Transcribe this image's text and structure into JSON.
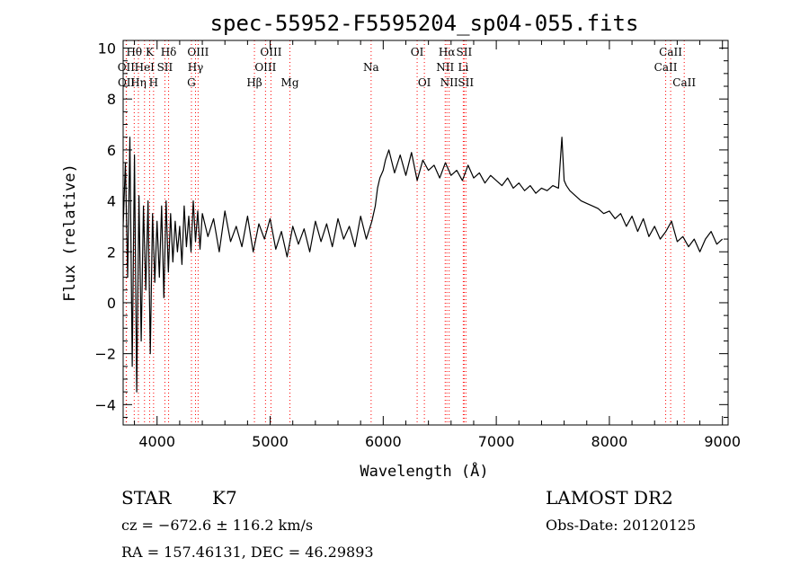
{
  "chart_data": {
    "type": "line",
    "title": "spec-55952-F5595204_sp04-055.fits",
    "xlabel": "Wavelength (Å)",
    "ylabel": "Flux (relative)",
    "xlim": [
      3700,
      9050
    ],
    "ylim": [
      -4.8,
      10.3
    ],
    "xticks": [
      4000,
      5000,
      6000,
      7000,
      8000,
      9000
    ],
    "yticks": [
      -4,
      -2,
      0,
      2,
      4,
      6,
      8,
      10
    ],
    "ytick_labels": [
      "−4",
      "−2",
      "0",
      "2",
      "4",
      "6",
      "8",
      "10"
    ],
    "grid": false,
    "line_color": "#000000",
    "marker_color": "#ff0000",
    "series": [
      {
        "x": [
          3700,
          3720,
          3740,
          3760,
          3780,
          3800,
          3820,
          3840,
          3860,
          3880,
          3900,
          3920,
          3940,
          3960,
          3980,
          4000,
          4020,
          4040,
          4060,
          4080,
          4100,
          4120,
          4140,
          4160,
          4180,
          4200,
          4220,
          4240,
          4260,
          4280,
          4300,
          4320,
          4340,
          4360,
          4380,
          4400,
          4450,
          4500,
          4550,
          4600,
          4650,
          4700,
          4750,
          4800,
          4850,
          4900,
          4950,
          5000,
          5050,
          5100,
          5150,
          5200,
          5250,
          5300,
          5350,
          5400,
          5450,
          5500,
          5550,
          5600,
          5650,
          5700,
          5750,
          5800,
          5850,
          5900,
          5930,
          5950,
          5970,
          6000,
          6020,
          6050,
          6100,
          6150,
          6200,
          6250,
          6300,
          6350,
          6400,
          6450,
          6500,
          6550,
          6600,
          6650,
          6700,
          6750,
          6800,
          6850,
          6900,
          6950,
          7000,
          7050,
          7100,
          7150,
          7200,
          7250,
          7300,
          7350,
          7400,
          7450,
          7500,
          7550,
          7580,
          7600,
          7620,
          7650,
          7700,
          7750,
          7800,
          7850,
          7900,
          7950,
          8000,
          8050,
          8100,
          8150,
          8200,
          8250,
          8300,
          8350,
          8400,
          8450,
          8500,
          8550,
          8600,
          8650,
          8700,
          8750,
          8800,
          8850,
          8900,
          8950,
          9000
        ],
        "y": [
          3.0,
          5.5,
          1.0,
          6.5,
          -2.5,
          5.8,
          -3.5,
          4.2,
          -1.5,
          3.8,
          0.5,
          4.0,
          -2.0,
          3.5,
          0.8,
          3.2,
          1.0,
          3.8,
          0.2,
          4.0,
          1.2,
          3.5,
          1.6,
          3.2,
          2.0,
          3.0,
          1.5,
          3.8,
          2.2,
          3.4,
          2.0,
          4.0,
          2.4,
          3.6,
          2.1,
          3.5,
          2.6,
          3.3,
          2.0,
          3.6,
          2.4,
          3.0,
          2.2,
          3.4,
          2.0,
          3.1,
          2.5,
          3.3,
          2.1,
          2.8,
          1.8,
          3.0,
          2.3,
          2.9,
          2.0,
          3.2,
          2.4,
          3.1,
          2.2,
          3.3,
          2.5,
          3.0,
          2.2,
          3.4,
          2.5,
          3.2,
          3.8,
          4.5,
          4.9,
          5.2,
          5.6,
          6.0,
          5.1,
          5.8,
          5.0,
          5.9,
          4.8,
          5.6,
          5.2,
          5.4,
          4.9,
          5.5,
          5.0,
          5.2,
          4.8,
          5.4,
          4.9,
          5.1,
          4.7,
          5.0,
          4.8,
          4.6,
          4.9,
          4.5,
          4.7,
          4.4,
          4.6,
          4.3,
          4.5,
          4.4,
          4.6,
          4.5,
          6.5,
          4.8,
          4.6,
          4.4,
          4.2,
          4.0,
          3.9,
          3.8,
          3.7,
          3.5,
          3.6,
          3.3,
          3.5,
          3.0,
          3.4,
          2.8,
          3.3,
          2.6,
          3.0,
          2.5,
          2.8,
          3.2,
          2.4,
          2.6,
          2.2,
          2.5,
          2.0,
          2.5,
          2.8,
          2.3,
          2.5
        ]
      }
    ],
    "lines": [
      {
        "label": "Hθ",
        "x": 3798,
        "row": 1
      },
      {
        "label": "OII",
        "x": 3727,
        "row": 2
      },
      {
        "label": "OII",
        "x": 3729,
        "row": 3
      },
      {
        "label": "K",
        "x": 3934,
        "row": 1
      },
      {
        "label": "HeI",
        "x": 3889,
        "row": 2
      },
      {
        "label": "Hη",
        "x": 3835,
        "row": 3
      },
      {
        "label": "H",
        "x": 3969,
        "row": 3
      },
      {
        "label": "SII",
        "x": 4069,
        "row": 2
      },
      {
        "label": "Hδ",
        "x": 4102,
        "row": 1
      },
      {
        "label": "OIII",
        "x": 4363,
        "row": 1
      },
      {
        "label": "Hγ",
        "x": 4340,
        "row": 2
      },
      {
        "label": "G",
        "x": 4304,
        "row": 3
      },
      {
        "label": "OIII",
        "x": 5007,
        "row": 1
      },
      {
        "label": "OIII",
        "x": 4959,
        "row": 2
      },
      {
        "label": "Hβ",
        "x": 4861,
        "row": 3
      },
      {
        "label": "Mg",
        "x": 5175,
        "row": 3
      },
      {
        "label": "Na",
        "x": 5893,
        "row": 2
      },
      {
        "label": "OI",
        "x": 6300,
        "row": 1
      },
      {
        "label": "OI",
        "x": 6364,
        "row": 3
      },
      {
        "label": "Hα",
        "x": 6563,
        "row": 1
      },
      {
        "label": "NII",
        "x": 6548,
        "row": 2
      },
      {
        "label": "NII",
        "x": 6583,
        "row": 3
      },
      {
        "label": "SII",
        "x": 6716,
        "row": 1
      },
      {
        "label": "Li",
        "x": 6708,
        "row": 2
      },
      {
        "label": "SII",
        "x": 6731,
        "row": 3
      },
      {
        "label": "CaII",
        "x": 8542,
        "row": 1
      },
      {
        "label": "CaII",
        "x": 8498,
        "row": 2
      },
      {
        "label": "CaII",
        "x": 8662,
        "row": 3
      }
    ]
  },
  "info": {
    "object_class": "STAR",
    "subclass": "K7",
    "survey": "LAMOST DR2",
    "redshift": "cz = −672.6 ± 116.2 km/s",
    "obs_date": "Obs-Date: 20120125",
    "coords": "RA = 157.46131, DEC =  46.29893"
  }
}
